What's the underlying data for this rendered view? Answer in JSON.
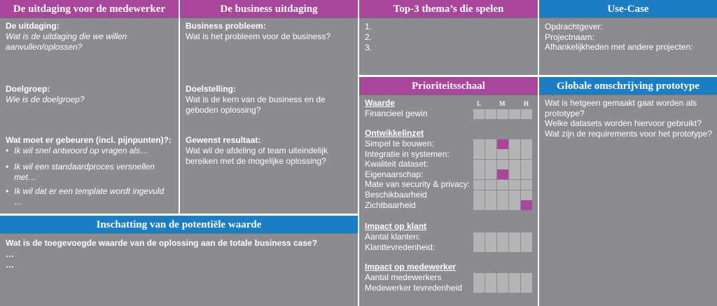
{
  "colors": {
    "purple": "#a8469c",
    "blue": "#1b7dc4",
    "panel": "#8b8c90",
    "cell": "#b4b4b6"
  },
  "col1": {
    "title": "De uitdaging voor de medewerker",
    "s1_label": "De uitdaging:",
    "s1_text": "Wat is de uitdaging die we willen aanvullen/oplossen?",
    "s2_label": "Doelgroep:",
    "s2_text": "Wie is de doelgroep?",
    "s3_label": "Wat moet er gebeuren (incl. pijnpunten)?:",
    "bullets": [
      "Ik wil snel antwoord op vragen als…",
      "Ik wil een standaardproces versnellen met…",
      "Ik wil dat er een template wordt ingevuld …"
    ]
  },
  "col2": {
    "title": "De business uitdaging",
    "s1_label": "Business probleem:",
    "s1_text": "Wat is het probleem voor de business?",
    "s2_label": "Doelstelling:",
    "s2_text": "Wat is de kern van de business en de geboden oplossing?",
    "s3_label": "Gewenst resultaat:",
    "s3_text": "Wat wil de afdeling of team uiteindelijk bereiken met de mogelijke oplossing?"
  },
  "bottom": {
    "title": "Inschatting van de potentiële waarde",
    "question": "Wat is de toegevoegde waarde van de oplossing aan de totale business case?",
    "lines": [
      "…",
      "…"
    ]
  },
  "top3": {
    "title": "Top-3 thema’s die spelen",
    "items": [
      "1.",
      "2.",
      "3."
    ]
  },
  "usecase": {
    "title": "Use-Case",
    "lines": [
      "Opdrachtgever:",
      "Projectnaam:",
      "Afhankelijkheden met andere projecten:"
    ]
  },
  "prio": {
    "title": "Prioriteitsschaal",
    "scale": [
      "L",
      "M",
      "H"
    ],
    "groups": [
      {
        "label": "Waarde",
        "rows": [
          {
            "label": "Financieel gewin",
            "level": null
          }
        ]
      },
      {
        "label": "Ontwikkelinzet",
        "rows": [
          {
            "label": "Simpel te bouwen:",
            "level": 3
          },
          {
            "label": "Integratie in systemen:",
            "level": null
          },
          {
            "label": "Kwaliteit dataset:",
            "level": null
          },
          {
            "label": "Eigenaarschap:",
            "level": 3
          },
          {
            "label": "Mate van security & privacy:",
            "level": null
          },
          {
            "label": "Beschikbaarheid",
            "level": null
          },
          {
            "label": "Zichtbaarheid",
            "level": 5
          }
        ]
      },
      {
        "label": "Impact op klant",
        "rows": [
          {
            "label": "Aantal klanten:",
            "level": null
          },
          {
            "label": "Klanttevredenheid:",
            "level": null
          }
        ]
      },
      {
        "label": "Impact op medewerker",
        "rows": [
          {
            "label": "Aantal medewerkers",
            "level": null
          },
          {
            "label": "Medewerker tevredenheid",
            "level": null
          }
        ]
      }
    ]
  },
  "prototype": {
    "title": "Globale omschrijving prototype",
    "lines": [
      "Wat is hetgeen gemaakt gaat worden als prototype?",
      "Welke datasets worden hiervoor gebruikt?",
      "Wat zijn de requirements voor het prototype?"
    ]
  }
}
